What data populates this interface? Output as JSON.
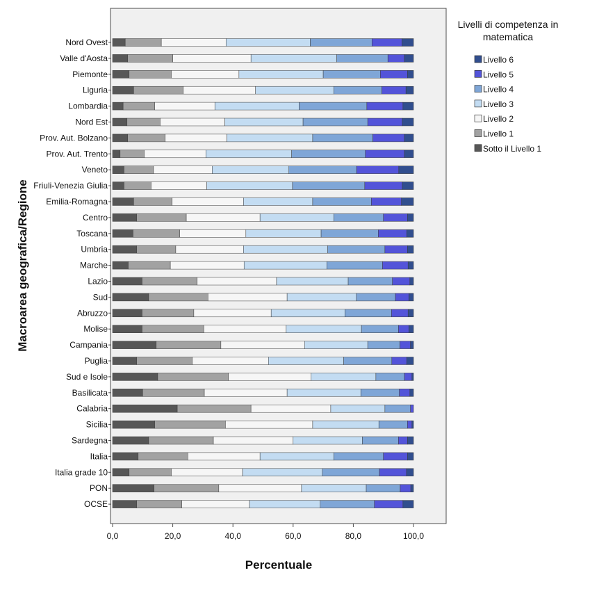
{
  "chart_data": {
    "type": "bar",
    "orientation": "horizontal",
    "stacked": true,
    "xlabel": "Percentuale",
    "ylabel": "Macroarea geografica/Regione",
    "xlim": [
      0,
      100
    ],
    "xticks": [
      "0,0",
      "20,0",
      "40,0",
      "60,0",
      "80,0",
      "100,0"
    ],
    "xtick_values": [
      0,
      20,
      40,
      60,
      80,
      100
    ],
    "legend": {
      "title_lines": [
        "Livelli di competenza in",
        "matematica"
      ],
      "placement": "right"
    },
    "categories": [
      "Nord Ovest",
      "Valle d'Aosta",
      "Piemonte",
      "Liguria",
      "Lombardia",
      "Nord Est",
      "Prov. Aut. Bolzano",
      "Prov. Aut. Trento",
      "Veneto",
      "Friuli-Venezia Giulia",
      "Emilia-Romagna",
      "Centro",
      "Toscana",
      "Umbria",
      "Marche",
      "Lazio",
      "Sud",
      "Abruzzo",
      "Molise",
      "Campania",
      "Puglia",
      "Sud e Isole",
      "Basilicata",
      "Calabria",
      "Sicilia",
      "Sardegna",
      "Italia",
      "Italia grade 10",
      "PON",
      "OCSE"
    ],
    "series": [
      {
        "name": "Sotto il Livello 1",
        "color": "#575757",
        "values": [
          4.2,
          5.0,
          5.5,
          7.0,
          3.5,
          4.8,
          5.0,
          2.5,
          3.8,
          3.8,
          7.0,
          8.0,
          6.8,
          8.0,
          5.2,
          9.8,
          12.0,
          9.8,
          9.8,
          14.5,
          8.0,
          15.0,
          10.0,
          21.5,
          14.0,
          12.0,
          8.5,
          5.5,
          13.8,
          8.0
        ]
      },
      {
        "name": "Livello 1",
        "color": "#a2a2a2",
        "values": [
          12.0,
          15.0,
          14.0,
          16.5,
          10.5,
          11.0,
          12.5,
          8.0,
          9.8,
          9.0,
          12.8,
          16.5,
          15.5,
          13.0,
          14.0,
          18.3,
          19.7,
          17.2,
          20.5,
          21.5,
          18.5,
          23.5,
          20.5,
          24.5,
          23.5,
          21.5,
          16.5,
          14.0,
          21.5,
          15.0
        ]
      },
      {
        "name": "Livello 2",
        "color": "#f6f6f6",
        "values": [
          21.5,
          26.0,
          22.5,
          24.0,
          20.0,
          21.5,
          20.5,
          20.5,
          19.5,
          18.5,
          23.7,
          24.5,
          22.0,
          22.5,
          24.5,
          26.4,
          26.3,
          25.7,
          27.4,
          27.8,
          25.3,
          27.5,
          27.5,
          26.5,
          29.0,
          26.5,
          24.0,
          23.7,
          27.5,
          22.5
        ]
      },
      {
        "name": "Livello 3",
        "color": "#c3dcf2",
        "values": [
          28.0,
          28.5,
          28.0,
          26.0,
          28.0,
          26.0,
          28.5,
          28.5,
          25.5,
          28.5,
          23.0,
          24.5,
          25.0,
          28.0,
          27.5,
          23.8,
          23.0,
          24.5,
          25.0,
          21.0,
          25.0,
          21.5,
          24.5,
          18.0,
          22.0,
          23.0,
          24.5,
          26.5,
          21.5,
          23.5
        ]
      },
      {
        "name": "Livello 4",
        "color": "#7fa6d7",
        "values": [
          20.5,
          17.0,
          19.0,
          16.0,
          22.5,
          21.5,
          20.0,
          24.5,
          22.5,
          24.0,
          19.5,
          16.5,
          19.0,
          19.0,
          18.5,
          14.7,
          13.0,
          15.5,
          12.3,
          10.7,
          16.0,
          9.5,
          12.8,
          8.5,
          9.5,
          12.0,
          16.5,
          19.0,
          11.3,
          18.0
        ]
      },
      {
        "name": "Livello 5",
        "color": "#5354d9",
        "values": [
          10.0,
          5.5,
          9.0,
          8.0,
          12.0,
          11.5,
          10.5,
          13.0,
          14.0,
          12.5,
          10.0,
          8.0,
          9.5,
          7.5,
          8.5,
          5.8,
          4.5,
          5.5,
          3.5,
          3.5,
          5.0,
          2.5,
          3.5,
          1.5,
          1.5,
          3.0,
          8.0,
          9.0,
          3.5,
          9.5
        ]
      },
      {
        "name": "Livello 6",
        "color": "#314e8e",
        "values": [
          3.8,
          3.0,
          2.0,
          2.5,
          3.5,
          3.7,
          3.0,
          3.0,
          4.9,
          3.7,
          4.0,
          2.0,
          2.2,
          2.0,
          1.8,
          1.2,
          1.5,
          1.8,
          1.5,
          1.0,
          2.2,
          0.5,
          1.2,
          0.5,
          0.5,
          2.0,
          2.0,
          2.3,
          0.9,
          3.5
        ]
      }
    ]
  }
}
